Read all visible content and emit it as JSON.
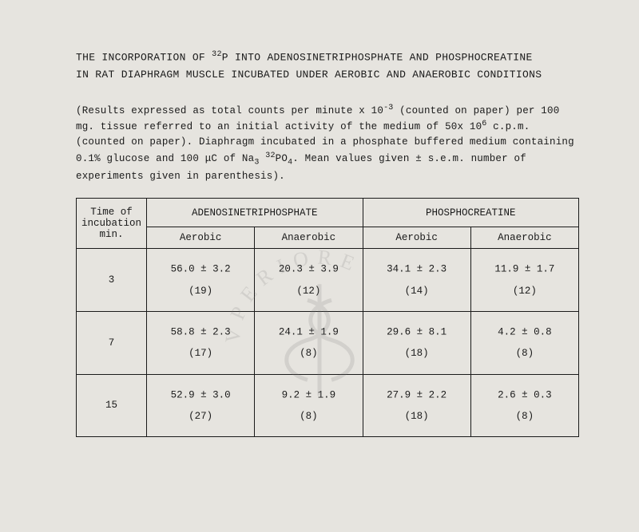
{
  "title": {
    "line1_pre": "THE INCORPORATION OF ",
    "line1_sup": "32",
    "line1_post": "P INTO ADENOSINETRIPHOSPHATE AND PHOSPHOCREATINE",
    "line2": "IN RAT DIAPHRAGM MUSCLE INCUBATED UNDER AEROBIC AND ANAEROBIC CONDITIONS"
  },
  "caption": {
    "p1": "(Results expressed as total counts per minute x 10",
    "p1_sup": "-3",
    "p2": " (counted on paper) per 100 mg. tissue referred to an initial activity of the medium of 50x 10",
    "p2_sup": "6",
    "p3": " c.p.m. (counted on paper). Diaphragm incubated in a phosphate buffered medium containing 0.1% glucose and 100 μC of Na",
    "p3_sub": "3",
    "p4": " ",
    "p4_sup": "32",
    "p5": "PO",
    "p5_sub": "4",
    "p6": ". Mean values given ± s.e.m. number of experiments given in parenthesis)."
  },
  "table": {
    "col_time": "Time of incubation min.",
    "group_atp": "ADENOSINETRIPHOSPHATE",
    "group_pc": "PHOSPHOCREATINE",
    "sub_aerobic": "Aerobic",
    "sub_anaerobic": "Anaerobic",
    "rows": [
      {
        "time": "3",
        "atp_aer_v": "56.0",
        "atp_aer_e": "3.2",
        "atp_aer_n": "(19)",
        "atp_ana_v": "20.3",
        "atp_ana_e": "3.9",
        "atp_ana_n": "(12)",
        "pc_aer_v": "34.1",
        "pc_aer_e": "2.3",
        "pc_aer_n": "(14)",
        "pc_ana_v": "11.9",
        "pc_ana_e": "1.7",
        "pc_ana_n": "(12)"
      },
      {
        "time": "7",
        "atp_aer_v": "58.8",
        "atp_aer_e": "2.3",
        "atp_aer_n": "(17)",
        "atp_ana_v": "24.1",
        "atp_ana_e": "1.9",
        "atp_ana_n": "(8)",
        "pc_aer_v": "29.6",
        "pc_aer_e": "8.1",
        "pc_aer_n": "(18)",
        "pc_ana_v": "4.2",
        "pc_ana_e": "0.8",
        "pc_ana_n": "(8)"
      },
      {
        "time": "15",
        "atp_aer_v": "52.9",
        "atp_aer_e": "3.0",
        "atp_aer_n": "(27)",
        "atp_ana_v": "9.2",
        "atp_ana_e": "1.9",
        "atp_ana_n": "(8)",
        "pc_aer_v": "27.9",
        "pc_aer_e": "2.2",
        "pc_aer_n": "(18)",
        "pc_ana_v": "2.6",
        "pc_ana_e": "0.3",
        "pc_ana_n": "(8)"
      }
    ]
  },
  "watermark": {
    "arc_text": "VPERIORE",
    "color": "#7a7a78"
  }
}
